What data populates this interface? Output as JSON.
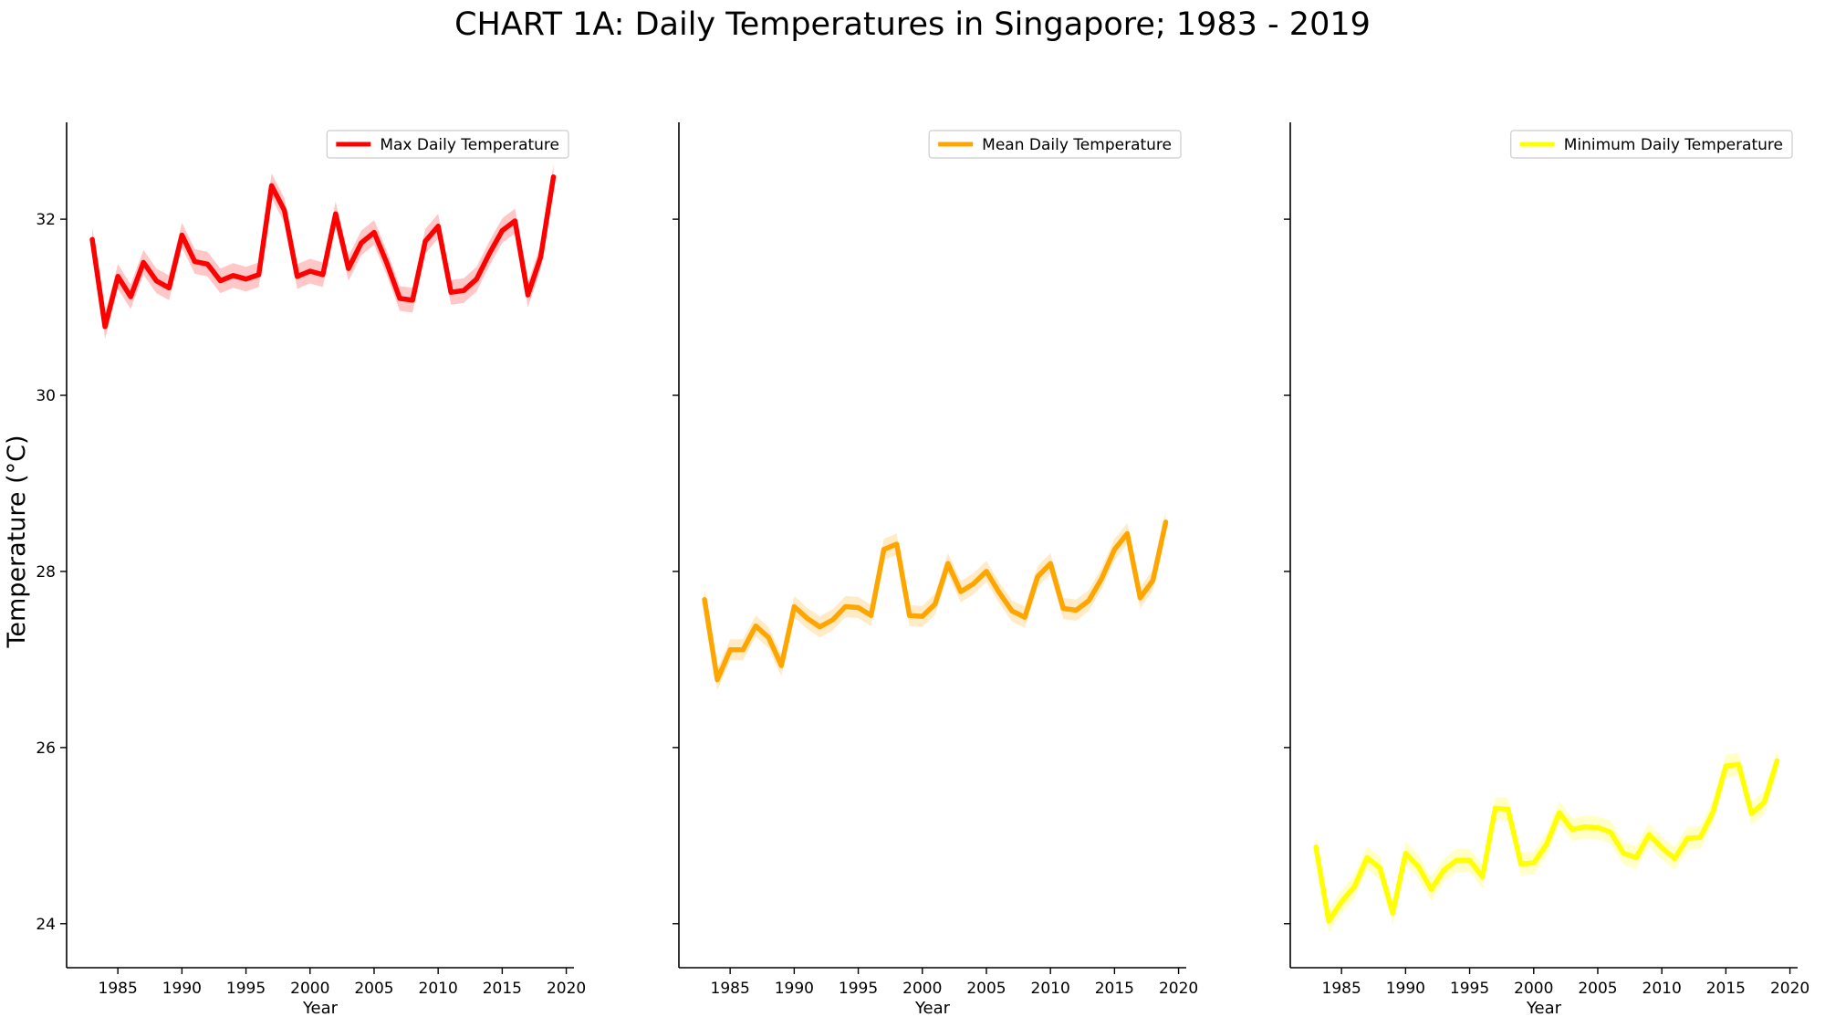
{
  "figure": {
    "title": "CHART 1A: Daily Temperatures in Singapore; 1983 - 2019",
    "ylabel": "Temperature (°C)"
  },
  "chart_data": [
    {
      "type": "line",
      "title": "",
      "xlabel": "Year",
      "ylabel": "Temperature (°C)",
      "xlim": [
        1981,
        2020.6
      ],
      "ylim": [
        23.5,
        33.1
      ],
      "xticks": [
        1985,
        1990,
        1995,
        2000,
        2005,
        2010,
        2015,
        2020
      ],
      "yticks": [
        24,
        26,
        28,
        30,
        32
      ],
      "legend_position": "upper right",
      "grid": false,
      "series": [
        {
          "name": "Max Daily Temperature",
          "color": "#ff0000",
          "x": [
            1983,
            1984,
            1985,
            1986,
            1987,
            1988,
            1989,
            1990,
            1991,
            1992,
            1993,
            1994,
            1995,
            1996,
            1997,
            1998,
            1999,
            2000,
            2001,
            2002,
            2003,
            2004,
            2005,
            2006,
            2007,
            2008,
            2009,
            2010,
            2011,
            2012,
            2013,
            2014,
            2015,
            2016,
            2017,
            2018,
            2019
          ],
          "values": [
            31.77,
            30.78,
            31.35,
            31.12,
            31.51,
            31.3,
            31.22,
            31.82,
            31.52,
            31.49,
            31.3,
            31.36,
            31.32,
            31.37,
            32.38,
            32.1,
            31.35,
            31.41,
            31.37,
            32.06,
            31.44,
            31.73,
            31.85,
            31.5,
            31.1,
            31.08,
            31.75,
            31.92,
            31.17,
            31.19,
            31.32,
            31.61,
            31.87,
            31.98,
            31.14,
            31.57,
            32.48
          ],
          "band": 0.14
        },
        {
          "name": "Mean Daily Temperature",
          "color": "#ffa500",
          "x": [
            1983,
            1984,
            1985,
            1986,
            1987,
            1988,
            1989,
            1990,
            1991,
            1992,
            1993,
            1994,
            1995,
            1996,
            1997,
            1998,
            1999,
            2000,
            2001,
            2002,
            2003,
            2004,
            2005,
            2006,
            2007,
            2008,
            2009,
            2010,
            2011,
            2012,
            2013,
            2014,
            2015,
            2016,
            2017,
            2018,
            2019
          ],
          "values": [
            27.68,
            26.77,
            27.11,
            27.11,
            27.38,
            27.25,
            26.93,
            27.6,
            27.47,
            27.37,
            27.45,
            27.6,
            27.59,
            27.5,
            28.25,
            28.31,
            27.5,
            27.49,
            27.63,
            28.09,
            27.77,
            27.86,
            28.0,
            27.76,
            27.55,
            27.48,
            27.94,
            28.09,
            27.58,
            27.56,
            27.67,
            27.92,
            28.25,
            28.43,
            27.7,
            27.9,
            28.56
          ],
          "band": 0.12
        },
        {
          "name": "Minimum Daily Temperature",
          "color": "#ffff00",
          "x": [
            1983,
            1984,
            1985,
            1986,
            1987,
            1988,
            1989,
            1990,
            1991,
            1992,
            1993,
            1994,
            1995,
            1996,
            1997,
            1998,
            1999,
            2000,
            2001,
            2002,
            2003,
            2004,
            2005,
            2006,
            2007,
            2008,
            2009,
            2010,
            2011,
            2012,
            2013,
            2014,
            2015,
            2016,
            2017,
            2018,
            2019
          ],
          "values": [
            24.87,
            24.03,
            24.25,
            24.42,
            24.75,
            24.63,
            24.12,
            24.8,
            24.65,
            24.39,
            24.61,
            24.72,
            24.72,
            24.53,
            25.31,
            25.3,
            24.68,
            24.69,
            24.9,
            25.26,
            25.07,
            25.1,
            25.09,
            25.04,
            24.8,
            24.75,
            25.01,
            24.86,
            24.74,
            24.97,
            24.98,
            25.27,
            25.79,
            25.81,
            25.25,
            25.38,
            25.85
          ],
          "band": 0.13
        }
      ]
    }
  ]
}
